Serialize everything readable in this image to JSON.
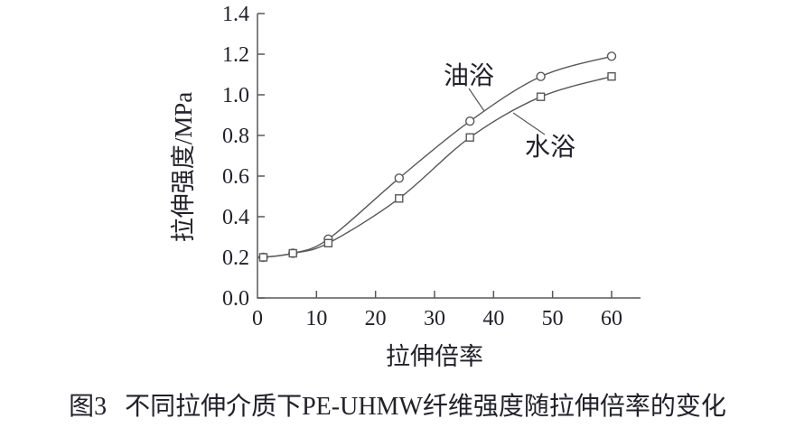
{
  "chart_data": {
    "type": "line",
    "title": "",
    "xlabel": "拉伸倍率",
    "ylabel": "拉伸强度/MPa",
    "xlim": [
      0,
      65
    ],
    "ylim": [
      0,
      1.4
    ],
    "x_ticks": [
      0,
      10,
      20,
      30,
      40,
      50,
      60
    ],
    "x_tick_labels": [
      "0",
      "10",
      "20",
      "30",
      "40",
      "50",
      "60"
    ],
    "y_ticks": [
      0,
      0.2,
      0.4,
      0.6,
      0.8,
      1.0,
      1.2,
      1.4
    ],
    "y_tick_labels": [
      "0.0",
      "0.2",
      "0.4",
      "0.6",
      "0.8",
      "1.0",
      "1.2",
      "1.4"
    ],
    "grid": false,
    "legend": "inline labels with leader lines pointing at curves",
    "x": [
      1,
      6,
      12,
      24,
      36,
      48,
      60
    ],
    "series": [
      {
        "name": "油浴",
        "marker": "circle",
        "values": [
          0.2,
          0.22,
          0.29,
          0.59,
          0.87,
          1.09,
          1.19
        ]
      },
      {
        "name": "水浴",
        "marker": "square",
        "values": [
          0.2,
          0.22,
          0.27,
          0.49,
          0.79,
          0.99,
          1.09
        ]
      }
    ],
    "line_color": "#58585c",
    "marker_fill": "#ffffff",
    "text_color": "#21212b",
    "background_color": "#ffffff"
  },
  "caption": {
    "figure_label": "图3",
    "text": "不同拉伸介质下PE-UHMW纤维强度随拉伸倍率的变化"
  }
}
